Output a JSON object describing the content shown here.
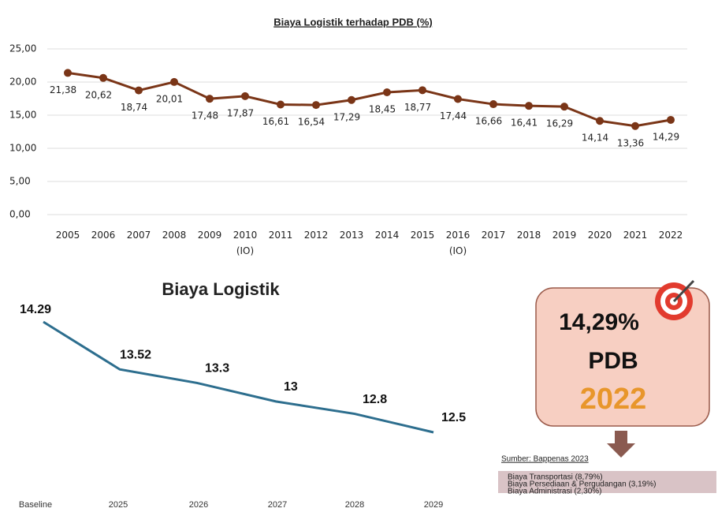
{
  "chart_data": [
    {
      "type": "line",
      "title": "Biaya Logistik terhadap PDB (%)",
      "categories": [
        "2005",
        "2006",
        "2007",
        "2008",
        "2009",
        "2010 (IO)",
        "2011",
        "2012",
        "2013",
        "2014",
        "2015",
        "2016 (IO)",
        "2017",
        "2018",
        "2019",
        "2020",
        "2021",
        "2022"
      ],
      "values": [
        21.38,
        20.62,
        18.74,
        20.01,
        17.48,
        17.87,
        16.61,
        16.54,
        17.29,
        18.45,
        18.77,
        17.44,
        16.66,
        16.41,
        16.29,
        14.14,
        13.36,
        14.29
      ],
      "value_labels": [
        "21,38",
        "20,62",
        "18,74",
        "20,01",
        "17,48",
        "17,87",
        "16,61",
        "16,54",
        "17,29",
        "18,45",
        "18,77",
        "17,44",
        "16,66",
        "16,41",
        "16,29",
        "14,14",
        "13,36",
        "14,29"
      ],
      "color": "#7a3517",
      "ylim": [
        0,
        25
      ],
      "yticks": [
        {
          "value": 0,
          "label": "0,00"
        },
        {
          "value": 5,
          "label": "5,00"
        },
        {
          "value": 10,
          "label": "10,00"
        },
        {
          "value": 15,
          "label": "15,00"
        },
        {
          "value": 20,
          "label": "20,00"
        },
        {
          "value": 25,
          "label": "25,00"
        }
      ],
      "grid": true
    },
    {
      "type": "line",
      "title": "Biaya Logistik",
      "categories": [
        "Baseline",
        "2025",
        "2026",
        "2027",
        "2028",
        "2029"
      ],
      "values": [
        14.29,
        13.52,
        13.3,
        13,
        12.8,
        12.5
      ],
      "color": "#2d6e8e"
    }
  ],
  "card": {
    "value": "14,29%",
    "unit": "PDB",
    "year": "2022"
  },
  "source": "Sumber: Bappenas 2023",
  "breakdown": [
    "Biaya Transportasi (8,79%)",
    "Biaya Persediaan & Pergudangan (3,19%)",
    "Biaya Administrasi (2,30%)"
  ]
}
